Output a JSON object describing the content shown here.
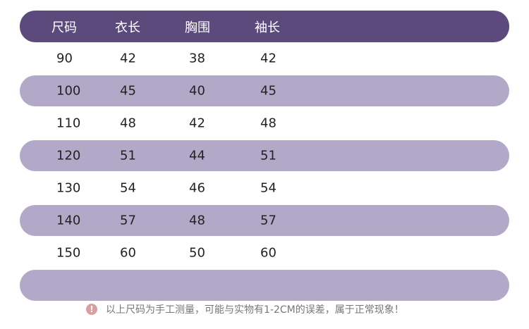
{
  "table": {
    "header": [
      "尺码",
      "衣长",
      "胸围",
      "袖长"
    ],
    "rows": [
      [
        90,
        42,
        38,
        42
      ],
      [
        100,
        45,
        40,
        45
      ],
      [
        110,
        48,
        42,
        48
      ],
      [
        120,
        51,
        44,
        51
      ],
      [
        130,
        54,
        46,
        54
      ],
      [
        140,
        57,
        48,
        57
      ],
      [
        150,
        60,
        50,
        60
      ]
    ]
  },
  "note": "以上尺码为手工测量，可能与实物有1-2CM的误差，属于正常现象！"
}
